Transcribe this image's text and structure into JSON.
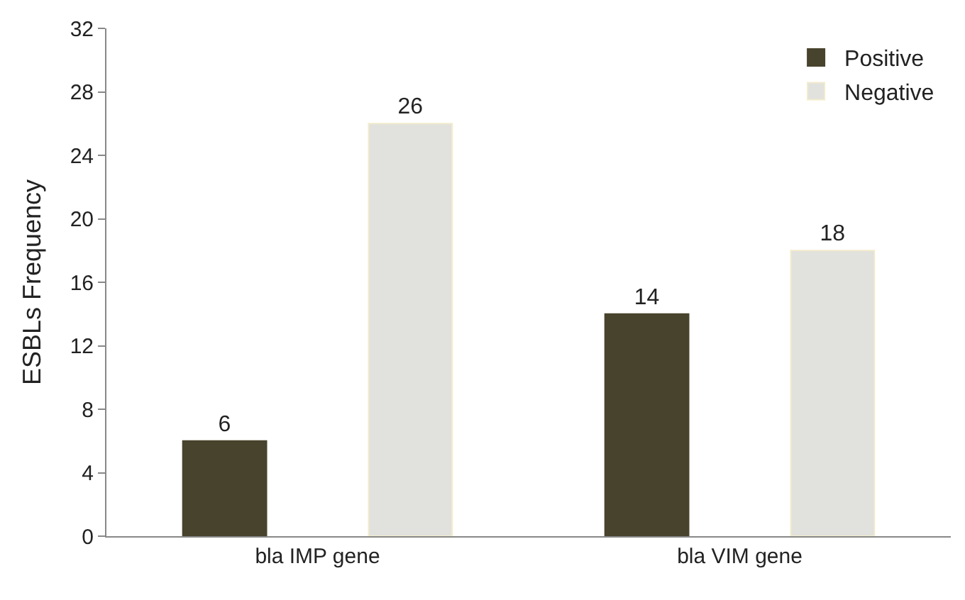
{
  "chart_data": {
    "type": "bar",
    "ylabel": "ESBLs Frequency",
    "categories": [
      "bla IMP gene",
      "bla VIM gene"
    ],
    "series": [
      {
        "name": "Positive",
        "color": "#48432d",
        "values": [
          6,
          14
        ]
      },
      {
        "name": "Negative",
        "color": "#e1e1de",
        "values": [
          26,
          18
        ]
      }
    ],
    "ylim": [
      0,
      32
    ],
    "yticks": [
      0,
      4,
      8,
      12,
      16,
      20,
      24,
      28,
      32
    ],
    "legend": "top right",
    "data_labels": true
  }
}
